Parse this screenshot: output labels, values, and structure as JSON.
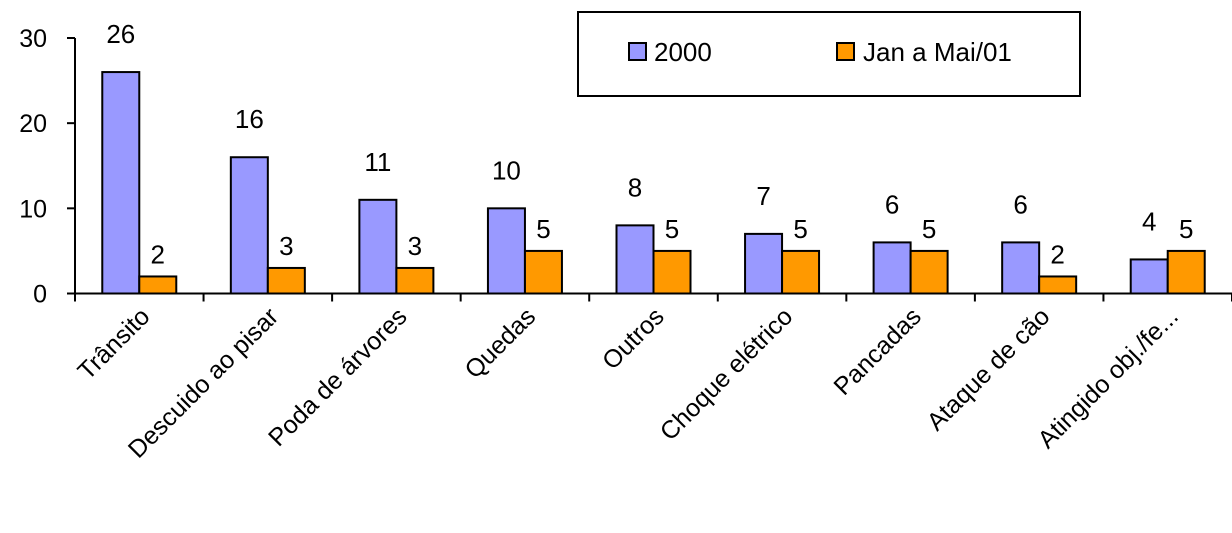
{
  "chart_data": {
    "type": "bar",
    "categories": [
      "Trânsito",
      "Descuido ao pisar",
      "Poda de árvores",
      "Quedas",
      "Outros",
      "Choque elétrico",
      "Pancadas",
      "Ataque de cão",
      "Atingido obj./fe..."
    ],
    "series": [
      {
        "name": "2000",
        "values": [
          26,
          16,
          11,
          10,
          8,
          7,
          6,
          6,
          4
        ],
        "color": "#9999ff"
      },
      {
        "name": "Jan a Mai/01",
        "values": [
          2,
          3,
          3,
          5,
          5,
          5,
          5,
          2,
          5
        ],
        "color": "#ff9900"
      }
    ],
    "ylim": [
      0,
      30
    ],
    "yticks": [
      0,
      10,
      20,
      30
    ],
    "ytick_labels": [
      "0",
      "10",
      "20",
      "30"
    ],
    "grid": false,
    "legend_position": "top-right",
    "title": "",
    "xlabel": "",
    "ylabel": ""
  }
}
